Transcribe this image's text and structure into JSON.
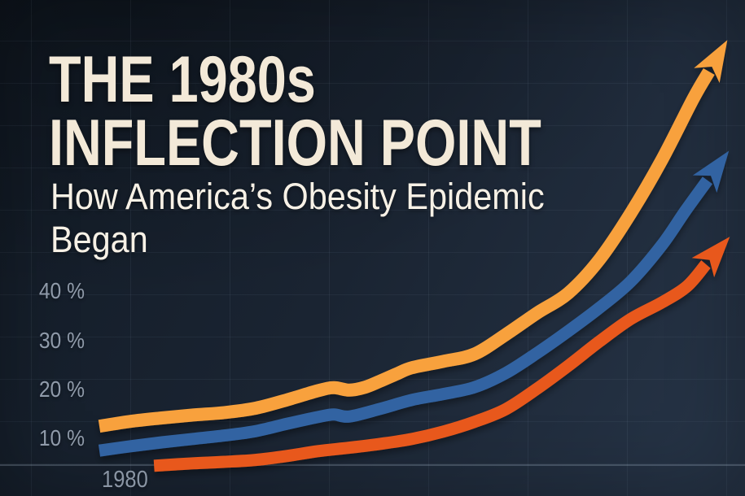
{
  "title": {
    "line1": "THE 1980s",
    "line2": "INFLECTION POINT"
  },
  "subtitle": {
    "line1": "How America’s Obesity Epidemic",
    "line2": "Began"
  },
  "colors": {
    "background_dark": "#121B26",
    "background_light": "#273548",
    "title_text": "#F3E9D8",
    "subtitle_text": "#F7F1E6",
    "axis_label_text": "#909BAA",
    "grid_line": "#96ACC4",
    "series_orange": "#F8A13C",
    "series_blue": "#3164A2",
    "series_red": "#E8591C"
  },
  "chart_data": {
    "type": "line",
    "title": "THE 1980s INFLECTION POINT",
    "subtitle": "How America’s Obesity Epidemic Began",
    "x_tick_label": "1980",
    "y_tick_labels": [
      "40 %",
      "30 %",
      "20 %",
      "10 %"
    ],
    "y_tick_values": [
      40,
      30,
      20,
      10
    ],
    "y_unit": "percent",
    "x_axis_start_year": 1980,
    "grid": true,
    "legend": "none",
    "arrow_ends": true,
    "series": [
      {
        "name": "orange",
        "color": "#F8A13C",
        "points": [
          [
            1980,
            12.3
          ],
          [
            1982,
            13.3
          ],
          [
            1984,
            14.0
          ],
          [
            1986,
            14.6
          ],
          [
            1988,
            15.1
          ],
          [
            1990,
            16.0
          ],
          [
            1992,
            17.7
          ],
          [
            1994,
            19.6
          ],
          [
            1995,
            20.2
          ],
          [
            1996,
            19.7
          ],
          [
            1997,
            20.3
          ],
          [
            1998,
            21.6
          ],
          [
            1999,
            23.0
          ],
          [
            2000,
            24.3
          ],
          [
            2002,
            25.6
          ],
          [
            2004,
            27.1
          ],
          [
            2006,
            31.1
          ],
          [
            2008,
            35.5
          ],
          [
            2010,
            39.6
          ],
          [
            2012,
            46.5
          ],
          [
            2014,
            56.0
          ],
          [
            2016,
            67.0
          ],
          [
            2018,
            79.5
          ],
          [
            2019,
            85.0
          ]
        ]
      },
      {
        "name": "blue",
        "color": "#3164A2",
        "points": [
          [
            1980,
            7.3
          ],
          [
            1982,
            8.2
          ],
          [
            1984,
            9.0
          ],
          [
            1986,
            9.7
          ],
          [
            1988,
            10.4
          ],
          [
            1990,
            11.3
          ],
          [
            1992,
            12.8
          ],
          [
            1994,
            14.2
          ],
          [
            1995,
            14.7
          ],
          [
            1996,
            14.3
          ],
          [
            1998,
            15.9
          ],
          [
            2000,
            17.7
          ],
          [
            2002,
            18.9
          ],
          [
            2004,
            20.3
          ],
          [
            2006,
            23.2
          ],
          [
            2008,
            27.3
          ],
          [
            2010,
            31.8
          ],
          [
            2012,
            36.6
          ],
          [
            2014,
            42.0
          ],
          [
            2016,
            49.5
          ],
          [
            2017.5,
            56.5
          ],
          [
            2018.9,
            62.7
          ]
        ]
      },
      {
        "name": "red",
        "color": "#E8591C",
        "points": [
          [
            1983.5,
            4.2
          ],
          [
            1986,
            4.7
          ],
          [
            1988,
            5.0
          ],
          [
            1990,
            5.4
          ],
          [
            1992,
            6.2
          ],
          [
            1994,
            7.2
          ],
          [
            1996,
            7.9
          ],
          [
            1998,
            8.7
          ],
          [
            2000,
            9.7
          ],
          [
            2002,
            11.2
          ],
          [
            2004,
            13.2
          ],
          [
            2006,
            15.8
          ],
          [
            2008,
            20.0
          ],
          [
            2010,
            24.7
          ],
          [
            2012,
            29.7
          ],
          [
            2014,
            34.3
          ],
          [
            2016,
            37.7
          ],
          [
            2017.6,
            41.0
          ],
          [
            2018.8,
            45.5
          ]
        ]
      }
    ]
  }
}
